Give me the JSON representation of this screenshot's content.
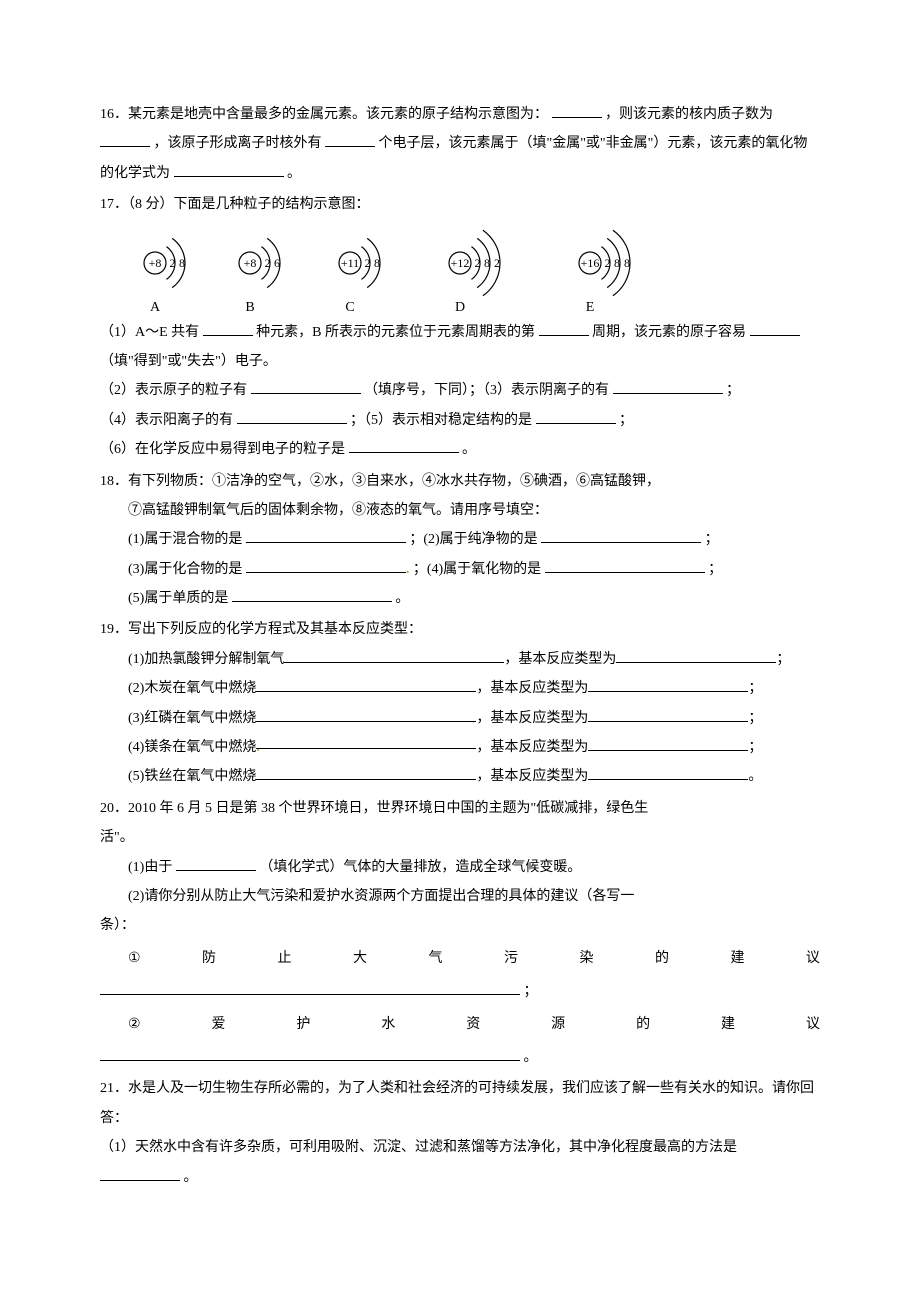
{
  "q16": {
    "text_a": "16．某元素是地壳中含量最多的金属元素。该元素的原子结构示意图为：",
    "text_b": "，则该元素的核内质子数为",
    "text_c": "，该原子形成离子时核外有",
    "text_d": "个电子层，该元素属于（填\"金属\"或\"非金属\"）元素，该元素的氧化物的化学式为",
    "text_e": "。"
  },
  "q17": {
    "head": "17．（8 分）下面是几种粒子的结构示意图：",
    "diagrams": [
      {
        "label": "A",
        "core": "+8",
        "shells": [
          "2",
          "8"
        ]
      },
      {
        "label": "B",
        "core": "+8",
        "shells": [
          "2",
          "6"
        ]
      },
      {
        "label": "C",
        "core": "+11",
        "shells": [
          "2",
          "8"
        ]
      },
      {
        "label": "D",
        "core": "+12",
        "shells": [
          "2",
          "8",
          "2"
        ]
      },
      {
        "label": "E",
        "core": "+16",
        "shells": [
          "2",
          "8",
          "8"
        ]
      }
    ],
    "l1a": "（1）A～E 共有",
    "l1b": "种元素，B 所表示的元素位于元素周期表的第",
    "l1c": "周期，该元素的原子容易",
    "l1d": "（填\"得到\"或\"失去\"）电子。",
    "l2a": "（2）表示原子的粒子有",
    "l2b": "（填序号，下同）；（3）表示阴离子的有",
    "l2c": "；",
    "l3a": "（4）表示阳离子的有",
    "l3b": "；（5）表示相对稳定结构的是",
    "l3c": "；",
    "l4a": "（6）在化学反应中易得到电子的粒子是",
    "l4b": "。"
  },
  "q18": {
    "head": "18．有下列物质：①洁净的空气，②水，③自来水，④冰水共存物，⑤碘酒，⑥高锰酸钾，",
    "head2": "⑦高锰酸钾制氧气后的固体剩余物，⑧液态的氧气。请用序号填空：",
    "r1a": "(1)属于混合物的是",
    "r1b": "；(2)属于纯净物的是",
    "r1c": "；",
    "r2a": "(3)属于化合物的是",
    "r2b": "；(4)属于氧化物的是",
    "r2c": "；",
    "r3a": "(5)属于单质的是",
    "r3b": "。"
  },
  "q19": {
    "head": "19．写出下列反应的化学方程式及其基本反应类型：",
    "rows": [
      {
        "a": "(1)加热氯酸钾分解制氧气",
        "b": "，基本反应类型为",
        "c": "；"
      },
      {
        "a": "(2)木炭在氧气中燃烧",
        "b": "，基本反应类型为",
        "c": "；"
      },
      {
        "a": "(3)红磷在氧气中燃烧",
        "b": "，基本反应类型为",
        "c": "；"
      },
      {
        "a": "(4)镁条在氧气中燃烧",
        "b": "，基本反应类型为",
        "c": "；"
      },
      {
        "a": "(5)铁丝在氧气中燃烧",
        "b": "，基本反应类型为",
        "c": "。"
      }
    ]
  },
  "q20": {
    "l1": "20．2010 年 6 月 5 日是第 38 个世界环境日，世界环境日中国的主题为\"低碳减排，绿色生",
    "l1b": "活\"。",
    "l2a": "(1)由于",
    "l2b": "（填化学式）气体的大量排放，造成全球气候变暖。",
    "l3": "(2)请你分别从防止大气污染和爱护水资源两个方面提出合理的具体的建议（各写一",
    "l3b": "条）：",
    "row1": [
      "①",
      "防",
      "止",
      "大",
      "气",
      "污",
      "染",
      "的",
      "建",
      "议"
    ],
    "tail1": "；",
    "row2": [
      "②",
      "爱",
      "护",
      "水",
      "资",
      "源",
      "的",
      "建",
      "议"
    ],
    "tail2": "。"
  },
  "q21": {
    "l1": "21．水是人及一切生物生存所必需的，为了人类和社会经济的可持续发展，我们应该了解一些有关水的知识。请你回答：",
    "l2a": "（1）天然水中含有许多杂质，可利用吸附、沉淀、过滤和蒸馏等方法净化，其中净化程度最高的方法是",
    "l2b": "。"
  },
  "svg": {
    "stroke": "#000000",
    "strokeWidth": 1.2,
    "fontSize": 12
  }
}
